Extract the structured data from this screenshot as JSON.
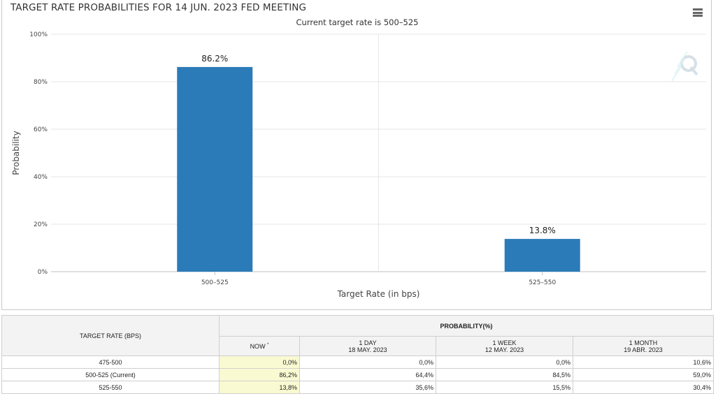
{
  "chart": {
    "title": "TARGET RATE PROBABILITIES FOR 14 JUN. 2023 FED MEETING",
    "subtitle": "Current target rate is 500–525"
  },
  "chart_data": {
    "type": "bar",
    "title": "TARGET RATE PROBABILITIES FOR 14 JUN. 2023 FED MEETING",
    "subtitle": "Current target rate is 500–525",
    "categories": [
      "500–525",
      "525–550"
    ],
    "values": [
      86.2,
      13.8
    ],
    "data_labels": [
      "86.2%",
      "13.8%"
    ],
    "xlabel": "Target Rate (in bps)",
    "ylabel": "Probability",
    "ylim": [
      0,
      100
    ],
    "yticks": [
      "0%",
      "20%",
      "40%",
      "60%",
      "80%",
      "100%"
    ],
    "grid": true,
    "bar_color": "#2b7bb9"
  },
  "table": {
    "target_rate_header": "TARGET RATE (BPS)",
    "probability_header": "PROBABILITY(%)",
    "columns": [
      {
        "label": "NOW",
        "mark": "*",
        "date": ""
      },
      {
        "label": "1 DAY",
        "date": "18 MAY. 2023"
      },
      {
        "label": "1 WEEK",
        "date": "12 MAY. 2023"
      },
      {
        "label": "1 MONTH",
        "date": "19 ABR. 2023"
      }
    ],
    "rows": [
      {
        "rate": "475-500",
        "values": [
          "0,0%",
          "0,0%",
          "0,0%",
          "10,6%"
        ]
      },
      {
        "rate": "500-525 (Current)",
        "values": [
          "86,2%",
          "64,4%",
          "84,5%",
          "59,0%"
        ]
      },
      {
        "rate": "525-550",
        "values": [
          "13,8%",
          "35,6%",
          "15,5%",
          "30,4%"
        ]
      }
    ]
  },
  "colors": {
    "bar": "#2b7bb9",
    "now_highlight": "#fafad2",
    "header_bg": "#f3f3f3"
  },
  "icons": {
    "menu": "hamburger-menu-icon",
    "logo": "quikstrike-q-logo"
  }
}
